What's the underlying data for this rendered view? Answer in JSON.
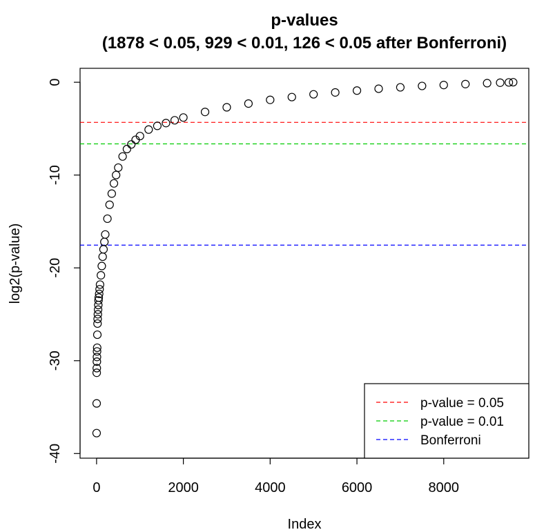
{
  "chart_data": {
    "type": "scatter",
    "title": "p-values",
    "subtitle": "(1878 < 0.05, 929 < 0.01, 126 < 0.05 after Bonferroni)",
    "xlabel": "Index",
    "ylabel": "log2(p-value)",
    "xlim": [
      -380,
      9960
    ],
    "ylim": [
      -40.5,
      1.5
    ],
    "xticks": [
      0,
      2000,
      4000,
      6000,
      8000
    ],
    "yticks": [
      0,
      -10,
      -20,
      -30,
      -40
    ],
    "grid": false,
    "point_color": "#000000",
    "series": [
      {
        "x": [
          1,
          2,
          3,
          5,
          7,
          9,
          11,
          14,
          18,
          22,
          25,
          30,
          35,
          40,
          45,
          50,
          60,
          70,
          80,
          100,
          120,
          140,
          160,
          180,
          200,
          250,
          300,
          350,
          400,
          450,
          500,
          600,
          700,
          800,
          900,
          1000,
          1200,
          1400,
          1600,
          1800,
          2000,
          2500,
          3000,
          3500,
          4000,
          4500,
          5000,
          5500,
          6000,
          6500,
          7000,
          7500,
          8000,
          8500,
          9000,
          9300,
          9500,
          9600
        ],
        "values": [
          -37.8,
          -34.6,
          -31.3,
          -30.8,
          -30.1,
          -29.6,
          -29.0,
          -28.6,
          -27.2,
          -26.0,
          -25.5,
          -25.0,
          -24.5,
          -24.0,
          -23.5,
          -23.2,
          -22.8,
          -22.3,
          -21.8,
          -20.8,
          -19.8,
          -18.8,
          -18.0,
          -17.2,
          -16.4,
          -14.7,
          -13.2,
          -12.0,
          -10.9,
          -10.0,
          -9.2,
          -8.0,
          -7.2,
          -6.7,
          -6.2,
          -5.8,
          -5.1,
          -4.7,
          -4.4,
          -4.1,
          -3.8,
          -3.2,
          -2.7,
          -2.3,
          -1.9,
          -1.6,
          -1.3,
          -1.1,
          -0.9,
          -0.7,
          -0.55,
          -0.4,
          -0.3,
          -0.2,
          -0.1,
          -0.05,
          -0.02,
          0.0
        ]
      }
    ],
    "reference_lines": [
      {
        "name": "p-value = 0.05",
        "y": -4.32,
        "color": "#ff0000",
        "style": "dashed"
      },
      {
        "name": "p-value = 0.01",
        "y": -6.64,
        "color": "#00cc00",
        "style": "dashed"
      },
      {
        "name": "Bonferroni",
        "y": -17.55,
        "color": "#0000ff",
        "style": "dashed"
      }
    ],
    "legend_placement": "bottom-right"
  }
}
